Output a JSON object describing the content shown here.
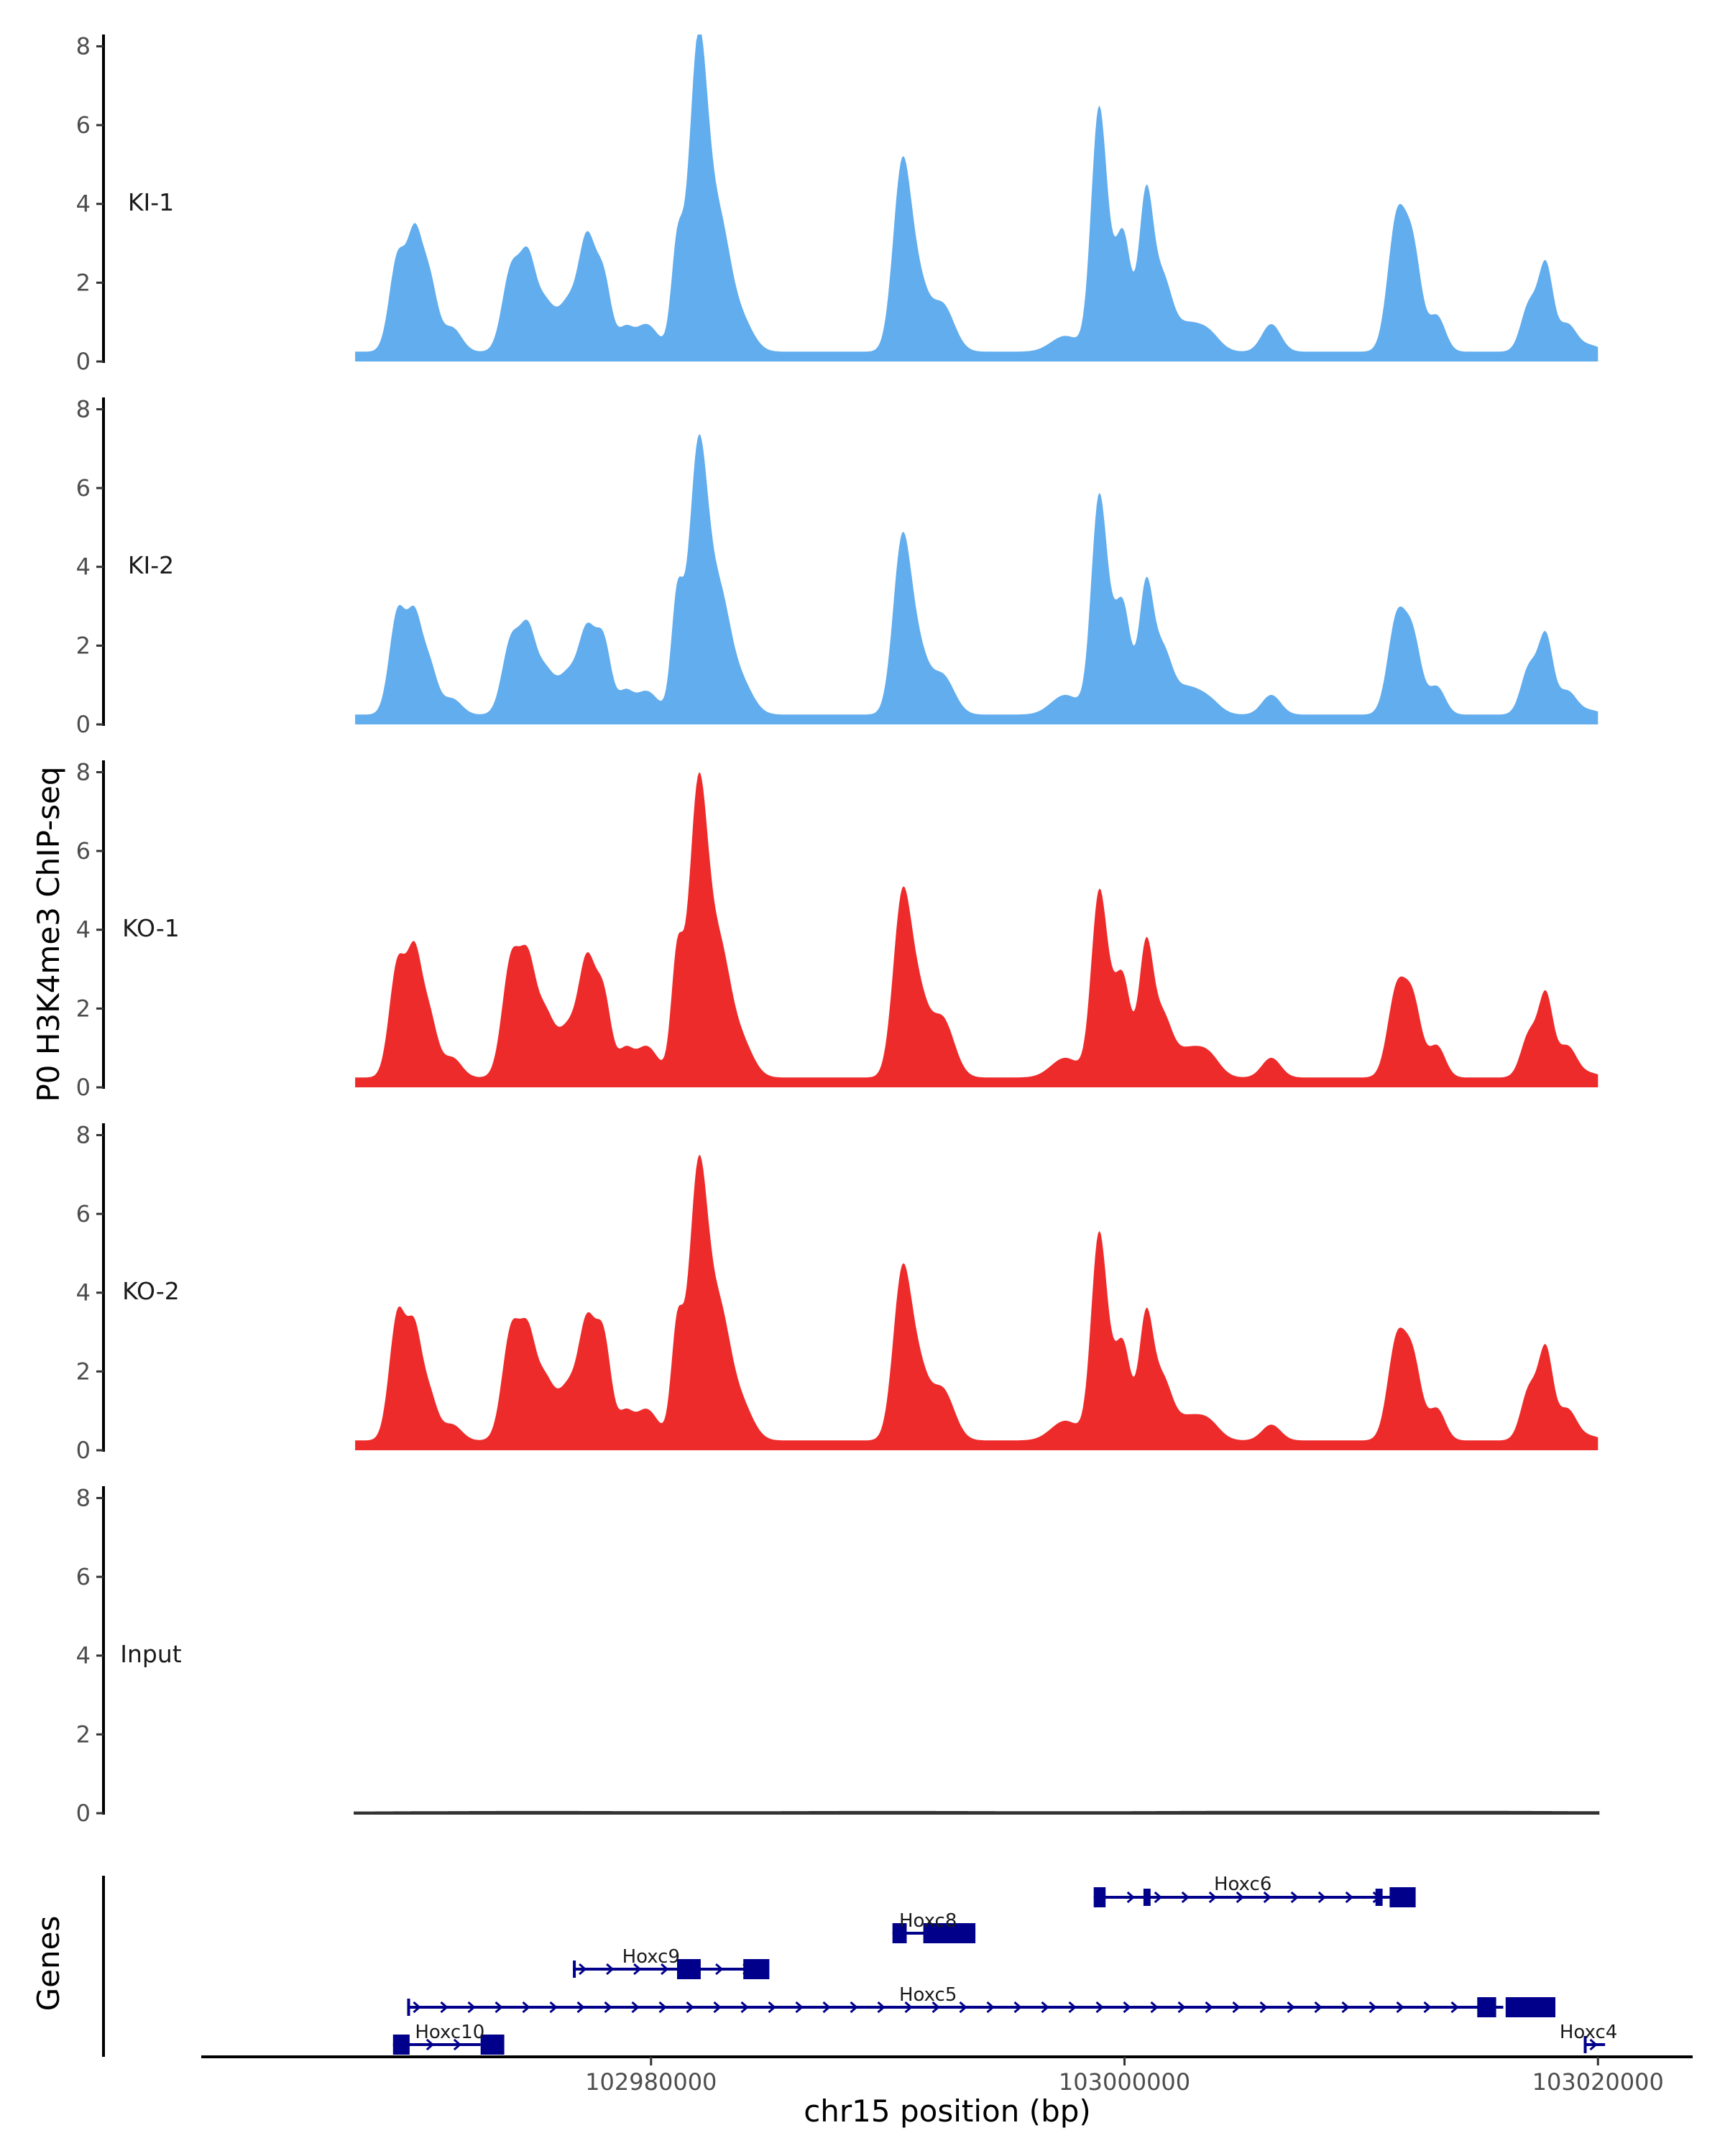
{
  "chart_data": {
    "type": "area",
    "title": "",
    "ylabel": "P0 H3K4me3 ChIP-seq",
    "gene_axis_label": "Genes",
    "xlabel": "chr15 position (bp)",
    "xlim": [
      102961000,
      103024000
    ],
    "x_ticks": [
      102980000,
      103000000,
      103020000
    ],
    "x_tick_labels": [
      "102980000",
      "103000000",
      "103020000"
    ],
    "ylim": [
      0,
      8.3
    ],
    "y_ticks": [
      0,
      2,
      4,
      6,
      8
    ],
    "y_tick_labels": [
      "0",
      "2",
      "4",
      "6",
      "8"
    ],
    "track_range": [
      102967500,
      103020000
    ],
    "series": [
      {
        "name": "KI-1",
        "color": "#62aded",
        "peaks": [
          [
            102969300,
            2.4,
            350
          ],
          [
            102970000,
            2.5,
            300
          ],
          [
            102970600,
            1.9,
            350
          ],
          [
            102971600,
            0.6,
            400
          ],
          [
            102974100,
            2.1,
            380
          ],
          [
            102974800,
            2.0,
            320
          ],
          [
            102975500,
            1.2,
            400
          ],
          [
            102976500,
            1.2,
            420
          ],
          [
            102977300,
            2.7,
            350
          ],
          [
            102978000,
            1.8,
            320
          ],
          [
            102978900,
            0.5,
            300
          ],
          [
            102979800,
            0.7,
            500
          ],
          [
            102981100,
            2.5,
            250
          ],
          [
            102982000,
            7.8,
            400
          ],
          [
            102982900,
            3.0,
            450
          ],
          [
            102983800,
            0.8,
            500
          ],
          [
            102990600,
            4.6,
            380
          ],
          [
            102991300,
            1.5,
            400
          ],
          [
            102992300,
            1.2,
            500
          ],
          [
            102997500,
            0.4,
            600
          ],
          [
            102998900,
            5.7,
            320
          ],
          [
            102999500,
            1.5,
            400
          ],
          [
            103000000,
            2.3,
            300
          ],
          [
            103000900,
            3.8,
            300
          ],
          [
            103001600,
            1.8,
            400
          ],
          [
            103002600,
            0.6,
            500
          ],
          [
            103003500,
            0.5,
            500
          ],
          [
            103006200,
            0.7,
            400
          ],
          [
            103011500,
            3.3,
            380
          ],
          [
            103012200,
            2.4,
            350
          ],
          [
            103013200,
            0.9,
            350
          ],
          [
            103017100,
            1.2,
            350
          ],
          [
            103017800,
            2.1,
            300
          ],
          [
            103018700,
            0.7,
            400
          ],
          [
            103019700,
            0.15,
            400
          ]
        ]
      },
      {
        "name": "KI-2",
        "color": "#62aded",
        "peaks": [
          [
            102969300,
            2.6,
            350
          ],
          [
            102970000,
            2.1,
            300
          ],
          [
            102970600,
            1.3,
            350
          ],
          [
            102971600,
            0.4,
            400
          ],
          [
            102974100,
            1.9,
            380
          ],
          [
            102974800,
            1.8,
            320
          ],
          [
            102975500,
            1.1,
            400
          ],
          [
            102976500,
            1.0,
            420
          ],
          [
            102977300,
            2.0,
            350
          ],
          [
            102978000,
            1.8,
            320
          ],
          [
            102978900,
            0.5,
            300
          ],
          [
            102979800,
            0.6,
            500
          ],
          [
            102981100,
            2.8,
            250
          ],
          [
            102982000,
            6.7,
            400
          ],
          [
            102982900,
            2.8,
            450
          ],
          [
            102983800,
            0.8,
            500
          ],
          [
            102990600,
            4.3,
            380
          ],
          [
            102991300,
            1.4,
            400
          ],
          [
            102992300,
            1.0,
            500
          ],
          [
            102997500,
            0.5,
            600
          ],
          [
            102998900,
            5.0,
            320
          ],
          [
            102999500,
            1.7,
            400
          ],
          [
            103000000,
            2.0,
            300
          ],
          [
            103000900,
            3.1,
            300
          ],
          [
            103001600,
            1.6,
            400
          ],
          [
            103002600,
            0.6,
            500
          ],
          [
            103003500,
            0.4,
            500
          ],
          [
            103006200,
            0.5,
            400
          ],
          [
            103011500,
            2.4,
            380
          ],
          [
            103012200,
            1.8,
            350
          ],
          [
            103013200,
            0.7,
            350
          ],
          [
            103017100,
            1.2,
            350
          ],
          [
            103017800,
            1.9,
            300
          ],
          [
            103018700,
            0.6,
            400
          ],
          [
            103019700,
            0.1,
            400
          ]
        ]
      },
      {
        "name": "KO-1",
        "color": "#ee2b2b",
        "peaks": [
          [
            102969300,
            2.9,
            350
          ],
          [
            102970000,
            2.7,
            300
          ],
          [
            102970600,
            1.6,
            350
          ],
          [
            102971600,
            0.5,
            400
          ],
          [
            102974100,
            3.0,
            380
          ],
          [
            102974800,
            2.4,
            320
          ],
          [
            102975500,
            1.6,
            400
          ],
          [
            102976500,
            1.2,
            420
          ],
          [
            102977300,
            2.8,
            350
          ],
          [
            102978000,
            2.0,
            320
          ],
          [
            102978900,
            0.6,
            300
          ],
          [
            102979800,
            0.8,
            500
          ],
          [
            102981100,
            2.9,
            250
          ],
          [
            102982000,
            7.3,
            400
          ],
          [
            102982900,
            3.0,
            450
          ],
          [
            102983800,
            0.9,
            500
          ],
          [
            102990600,
            4.4,
            380
          ],
          [
            102991300,
            1.8,
            400
          ],
          [
            102992300,
            1.5,
            500
          ],
          [
            102997500,
            0.5,
            600
          ],
          [
            102998900,
            4.2,
            320
          ],
          [
            102999500,
            1.6,
            400
          ],
          [
            103000000,
            1.8,
            300
          ],
          [
            103000900,
            3.2,
            300
          ],
          [
            103001600,
            1.5,
            400
          ],
          [
            103002600,
            0.6,
            500
          ],
          [
            103003500,
            0.6,
            500
          ],
          [
            103006200,
            0.5,
            400
          ],
          [
            103011500,
            2.2,
            380
          ],
          [
            103012200,
            1.8,
            350
          ],
          [
            103013200,
            0.8,
            350
          ],
          [
            103017100,
            1.1,
            350
          ],
          [
            103017800,
            2.0,
            300
          ],
          [
            103018700,
            0.8,
            400
          ],
          [
            103019700,
            0.1,
            400
          ]
        ]
      },
      {
        "name": "KO-2",
        "color": "#ee2b2b",
        "peaks": [
          [
            102969300,
            3.2,
            350
          ],
          [
            102970000,
            2.4,
            300
          ],
          [
            102970600,
            1.2,
            350
          ],
          [
            102971600,
            0.4,
            400
          ],
          [
            102974100,
            2.8,
            380
          ],
          [
            102974800,
            2.2,
            320
          ],
          [
            102975500,
            1.5,
            400
          ],
          [
            102976500,
            1.3,
            420
          ],
          [
            102977300,
            2.8,
            350
          ],
          [
            102978000,
            2.5,
            320
          ],
          [
            102978900,
            0.6,
            300
          ],
          [
            102979800,
            0.8,
            500
          ],
          [
            102981100,
            2.7,
            250
          ],
          [
            102982000,
            6.8,
            400
          ],
          [
            102982900,
            3.0,
            450
          ],
          [
            102983800,
            0.9,
            500
          ],
          [
            102990600,
            4.1,
            380
          ],
          [
            102991300,
            1.6,
            400
          ],
          [
            102992300,
            1.3,
            500
          ],
          [
            102997500,
            0.5,
            600
          ],
          [
            102998900,
            4.8,
            320
          ],
          [
            102999500,
            1.4,
            400
          ],
          [
            103000000,
            1.8,
            300
          ],
          [
            103000900,
            3.0,
            300
          ],
          [
            103001600,
            1.5,
            400
          ],
          [
            103002600,
            0.5,
            500
          ],
          [
            103003500,
            0.5,
            500
          ],
          [
            103006200,
            0.4,
            400
          ],
          [
            103011500,
            2.5,
            380
          ],
          [
            103012200,
            1.9,
            350
          ],
          [
            103013200,
            0.8,
            350
          ],
          [
            103017100,
            1.3,
            350
          ],
          [
            103017800,
            2.2,
            300
          ],
          [
            103018700,
            0.8,
            400
          ],
          [
            103019700,
            0.1,
            400
          ]
        ]
      },
      {
        "name": "Input",
        "color": "#333333",
        "peaks": [
          [
            102975000,
            0.02,
            5000
          ],
          [
            102990000,
            0.02,
            5000
          ],
          [
            103005000,
            0.02,
            5000
          ],
          [
            103015000,
            0.02,
            5000
          ]
        ]
      }
    ],
    "genes": [
      {
        "name": "Hoxc6",
        "row": 1,
        "start": 102998700,
        "end": 103011800,
        "strand": "+",
        "exons": [
          [
            102998700,
            102999200
          ],
          [
            103000800,
            103001100
          ],
          [
            103010600,
            103010900
          ],
          [
            103011200,
            103012300
          ]
        ],
        "label_x": 103005000
      },
      {
        "name": "Hoxc8",
        "row": 2,
        "start": 102990200,
        "end": 102993700,
        "strand": "+",
        "exons": [
          [
            102990200,
            102990800
          ],
          [
            102991500,
            102993700
          ]
        ],
        "label_x": 102991700
      },
      {
        "name": "Hoxc9",
        "row": 3,
        "start": 102976700,
        "end": 102984500,
        "strand": "+",
        "exons": [
          [
            102976700,
            102976800
          ],
          [
            102981100,
            102982100
          ],
          [
            102983900,
            102985000
          ]
        ],
        "label_x": 102980000
      },
      {
        "name": "Hoxc5",
        "row": 4,
        "start": 102969700,
        "end": 103016000,
        "strand": "+",
        "exons": [
          [
            102969700,
            102969800
          ],
          [
            103014900,
            103015700
          ],
          [
            103016100,
            103018200
          ]
        ],
        "label_x": 102991700
      },
      {
        "name": "Hoxc10",
        "row": 5,
        "start": 102969100,
        "end": 102972800,
        "strand": "+",
        "exons": [
          [
            102969100,
            102969800
          ],
          [
            102972800,
            102973800
          ]
        ],
        "label_x": 102971500
      },
      {
        "name": "Hoxc4",
        "row": 5,
        "start": 103019400,
        "end": 103020300,
        "strand": "+",
        "exons": [
          [
            103019400,
            103019450
          ]
        ],
        "label_x": 103019600
      }
    ]
  }
}
